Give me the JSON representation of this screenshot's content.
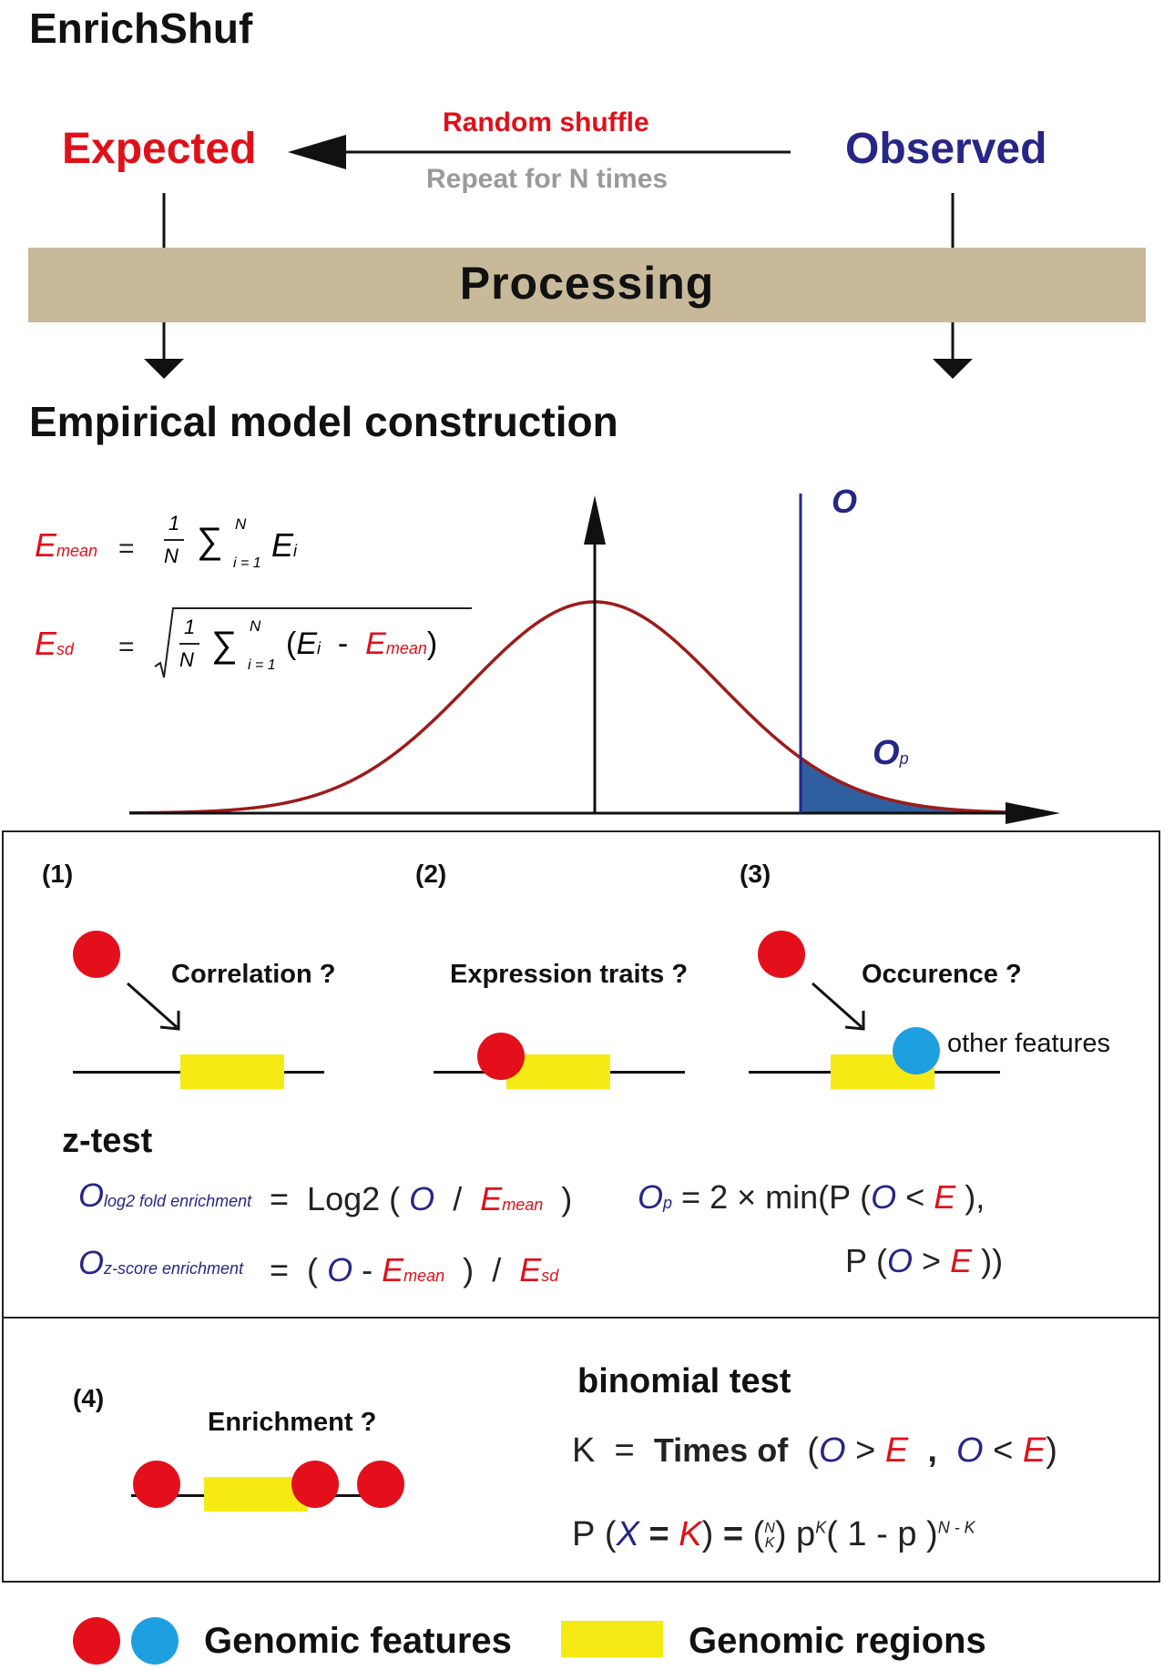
{
  "title": "EnrichShuf",
  "flow": {
    "expected": "Expected",
    "observed": "Observed",
    "random_shuffle": "Random shuffle",
    "repeat": "Repeat for N times",
    "processing": "Processing"
  },
  "model": {
    "heading": "Empirical model construction",
    "o_label": "O",
    "op_label": "O",
    "op_sub": "p",
    "emean": {
      "lhs": "E",
      "lhs_sub": "mean",
      "eq": "=",
      "frac_num": "1",
      "frac_den": "N",
      "sum": "∑",
      "sup": "N",
      "lower": "i = 1",
      "term": "E",
      "term_sub": "i"
    },
    "esd": {
      "lhs": "E",
      "lhs_sub": "sd",
      "eq": "=",
      "frac_num": "1",
      "frac_den": "N",
      "sum": "∑",
      "sup": "N",
      "lower": "i = 1",
      "open": "(",
      "term": "E",
      "term_sub": "i",
      "minus": "-",
      "mean": "E",
      "mean_sub": "mean",
      "close": ")"
    }
  },
  "tests": {
    "items": [
      {
        "num": "(1)",
        "label": "Correlation ?"
      },
      {
        "num": "(2)",
        "label": "Expression traits ?"
      },
      {
        "num": "(3)",
        "label": "Occurence ?"
      }
    ],
    "other_features": "other features",
    "ztest": {
      "title": "z-test",
      "log2": {
        "lhs": "O",
        "lhs_sub": "log2 fold enrichment",
        "eq": "=",
        "fn": "Log2",
        "open": "(",
        "o": "O",
        "slash": "/",
        "e": "E",
        "e_sub": "mean",
        "close": ")"
      },
      "zscore": {
        "lhs": "O",
        "lhs_sub": "z-score enrichment",
        "eq": "=",
        "open": "(",
        "o": "O",
        "minus": "-",
        "e": "E",
        "e_sub": "mean",
        "close": ")",
        "slash": "/",
        "sd": "E",
        "sd_sub": "sd"
      },
      "op": {
        "lhs": "O",
        "lhs_sub": "p",
        "eq": "= 2 × min",
        "p1": "P",
        "o1": "O",
        "lt": "<",
        "e1": "E",
        "c1": "),",
        "p2": "P",
        "o2": "O",
        "gt": ">",
        "e2": "E",
        "c2": "))"
      }
    },
    "enrichment": {
      "num": "(4)",
      "label": "Enrichment ?"
    },
    "binomial": {
      "title": "binomial test",
      "k_line": {
        "k": "K",
        "eq": "=",
        "times": "Times of",
        "o1": "O",
        "gt": ">",
        "e1": "E",
        "comma": ",",
        "o2": "O",
        "lt": "<",
        "e2": "E"
      },
      "p_line": {
        "p": "P",
        "x": "X",
        "eq1": "=",
        "k": "K",
        "eq2": "=",
        "n": "N",
        "kk": "K",
        "p2": "p",
        "sup_k": "K",
        "one_minus": "1 - p",
        "sup_nk": "N - K"
      }
    }
  },
  "legend": {
    "features": "Genomic features",
    "regions": "Genomic regions"
  },
  "colors": {
    "red": "#e0101a",
    "navy": "#262686",
    "tan": "#c8b99a",
    "yellow": "#f5ea14",
    "cyan": "#1ea0e0",
    "curve": "#9e1b1b",
    "tail": "#2f5f9e"
  }
}
